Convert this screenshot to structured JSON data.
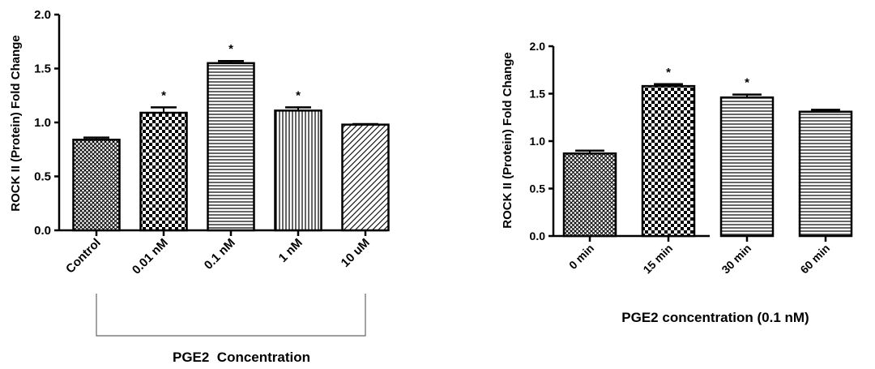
{
  "chart_data": [
    {
      "type": "bar",
      "title": "",
      "xlabel": "PGE2  Concentration",
      "ylabel": "ROCK II (Protein) Fold Change",
      "ylim": [
        0,
        2.0
      ],
      "yticks": [
        "0.0",
        "0.5",
        "1.0",
        "1.5",
        "2.0"
      ],
      "ytick_values": [
        0,
        0.5,
        1.0,
        1.5,
        2.0
      ],
      "categories": [
        "Control",
        "0.01 nM",
        "0.1 nM",
        "1 nM",
        "10 uM"
      ],
      "values": [
        0.84,
        1.09,
        1.55,
        1.11,
        0.98
      ],
      "errors": [
        0.02,
        0.05,
        0.02,
        0.03,
        0.005
      ],
      "significance": [
        "",
        "*",
        "*",
        "*",
        ""
      ],
      "patterns": [
        "crosshatch",
        "checker",
        "hlines",
        "vlines",
        "diagonal"
      ]
    },
    {
      "type": "bar",
      "title": "",
      "xlabel": "PGE2 concentration (0.1 nM)",
      "ylabel": "ROCK II (Protein) Fold Change",
      "ylim": [
        0,
        2.0
      ],
      "yticks": [
        "0.0",
        "0.5",
        "1.0",
        "1.5",
        "2.0"
      ],
      "ytick_values": [
        0,
        0.5,
        1.0,
        1.5,
        2.0
      ],
      "categories": [
        "0 min",
        "15 min",
        "30 min",
        "60 min"
      ],
      "values": [
        0.87,
        1.58,
        1.46,
        1.31
      ],
      "errors": [
        0.03,
        0.02,
        0.03,
        0.02
      ],
      "significance": [
        "",
        "*",
        "*",
        ""
      ],
      "patterns": [
        "crosshatch",
        "checker",
        "hlines",
        "hlines"
      ]
    }
  ]
}
